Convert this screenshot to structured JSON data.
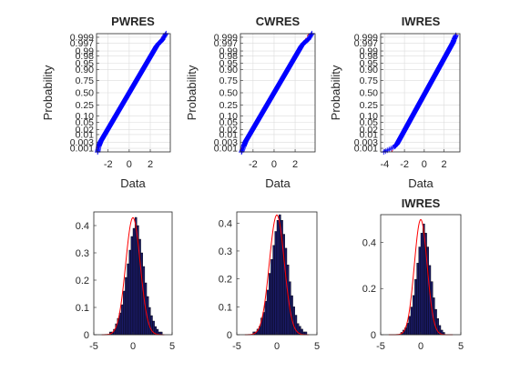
{
  "chart_data": [
    {
      "type": "scatter",
      "subtype": "normal-probability-plot",
      "title": "PWRES",
      "xlabel": "Data",
      "ylabel": "Probability",
      "xlim": [
        -3.1,
        3.9
      ],
      "xticks": [
        -2,
        0,
        2
      ],
      "xtick_labels": [
        "-2",
        "0",
        "2"
      ],
      "yticks": [
        0.001,
        0.003,
        0.01,
        0.02,
        0.05,
        0.1,
        0.25,
        0.5,
        0.75,
        0.9,
        0.95,
        0.98,
        0.99,
        0.997,
        0.999
      ],
      "ytick_labels": [
        "0.001",
        "0.003",
        "0.01",
        "0.02",
        "0.05",
        "0.10",
        "0.25",
        "0.50",
        "0.75",
        "0.90",
        "0.95",
        "0.98",
        "0.99",
        "0.997",
        "0.999"
      ],
      "grid": true,
      "ref_line": {
        "mean": 0,
        "sd": 1
      },
      "points_x": [
        -3.0,
        -2.9,
        -2.8,
        -2.7,
        -2.6,
        -2.5,
        -2.4,
        -2.3,
        -2.2,
        -2.1,
        -2.0,
        -1.9,
        -1.8,
        -1.7,
        -1.6,
        -1.5,
        -1.4,
        -1.3,
        -1.2,
        -1.1,
        -1.0,
        -0.9,
        -0.8,
        -0.7,
        -0.6,
        -0.5,
        -0.4,
        -0.3,
        -0.2,
        -0.1,
        0.0,
        0.1,
        0.2,
        0.3,
        0.4,
        0.5,
        0.6,
        0.7,
        0.8,
        0.9,
        1.0,
        1.1,
        1.2,
        1.3,
        1.4,
        1.5,
        1.6,
        1.7,
        1.8,
        1.9,
        2.0,
        2.1,
        2.2,
        2.3,
        2.4,
        2.5,
        2.6,
        2.8,
        3.0,
        3.2,
        3.5
      ],
      "points_z": [
        -3.3,
        -3.0,
        -2.85,
        -2.7,
        -2.6,
        -2.5,
        -2.4,
        -2.3,
        -2.2,
        -2.1,
        -2.0,
        -1.9,
        -1.8,
        -1.7,
        -1.6,
        -1.5,
        -1.4,
        -1.3,
        -1.2,
        -1.1,
        -1.0,
        -0.9,
        -0.8,
        -0.7,
        -0.6,
        -0.5,
        -0.4,
        -0.3,
        -0.2,
        -0.1,
        0.0,
        0.1,
        0.2,
        0.3,
        0.4,
        0.5,
        0.6,
        0.7,
        0.8,
        0.9,
        1.0,
        1.1,
        1.2,
        1.3,
        1.4,
        1.5,
        1.6,
        1.7,
        1.8,
        1.9,
        2.0,
        2.1,
        2.2,
        2.3,
        2.4,
        2.5,
        2.6,
        2.75,
        2.85,
        3.0,
        3.3
      ]
    },
    {
      "type": "scatter",
      "subtype": "normal-probability-plot",
      "title": "CWRES",
      "xlabel": "Data",
      "ylabel": "Probability",
      "xlim": [
        -3.2,
        3.9
      ],
      "xticks": [
        -2,
        0,
        2
      ],
      "xtick_labels": [
        "-2",
        "0",
        "2"
      ],
      "yticks": [
        0.001,
        0.003,
        0.01,
        0.02,
        0.05,
        0.1,
        0.25,
        0.5,
        0.75,
        0.9,
        0.95,
        0.98,
        0.99,
        0.997,
        0.999
      ],
      "ytick_labels": [
        "0.001",
        "0.003",
        "0.01",
        "0.02",
        "0.05",
        "0.10",
        "0.25",
        "0.50",
        "0.75",
        "0.90",
        "0.95",
        "0.98",
        "0.99",
        "0.997",
        "0.999"
      ],
      "grid": true,
      "ref_line": {
        "mean": 0,
        "sd": 1
      },
      "points_x": [
        -3.1,
        -2.9,
        -2.8,
        -2.7,
        -2.6,
        -2.5,
        -2.4,
        -2.3,
        -2.2,
        -2.1,
        -2.0,
        -1.9,
        -1.8,
        -1.7,
        -1.6,
        -1.5,
        -1.4,
        -1.3,
        -1.2,
        -1.1,
        -1.0,
        -0.9,
        -0.8,
        -0.7,
        -0.6,
        -0.5,
        -0.4,
        -0.3,
        -0.2,
        -0.1,
        0.0,
        0.1,
        0.2,
        0.3,
        0.4,
        0.5,
        0.6,
        0.7,
        0.8,
        0.9,
        1.0,
        1.1,
        1.2,
        1.3,
        1.4,
        1.5,
        1.6,
        1.7,
        1.8,
        1.9,
        2.0,
        2.1,
        2.2,
        2.3,
        2.4,
        2.5,
        2.6,
        2.8,
        3.0,
        3.3,
        3.6
      ],
      "points_z": [
        -3.3,
        -3.0,
        -2.85,
        -2.7,
        -2.6,
        -2.5,
        -2.4,
        -2.3,
        -2.2,
        -2.1,
        -2.0,
        -1.9,
        -1.8,
        -1.7,
        -1.6,
        -1.5,
        -1.4,
        -1.3,
        -1.2,
        -1.1,
        -1.0,
        -0.9,
        -0.8,
        -0.7,
        -0.6,
        -0.5,
        -0.4,
        -0.3,
        -0.2,
        -0.1,
        0.0,
        0.1,
        0.2,
        0.3,
        0.4,
        0.5,
        0.6,
        0.7,
        0.8,
        0.9,
        1.0,
        1.1,
        1.2,
        1.3,
        1.4,
        1.5,
        1.6,
        1.7,
        1.8,
        1.9,
        2.0,
        2.1,
        2.2,
        2.3,
        2.4,
        2.5,
        2.6,
        2.75,
        2.85,
        3.0,
        3.3
      ]
    },
    {
      "type": "scatter",
      "subtype": "normal-probability-plot",
      "title": "IWRES",
      "xlabel": "Data",
      "ylabel": "Probability",
      "xlim": [
        -4.4,
        3.6
      ],
      "xticks": [
        -4,
        -2,
        0,
        2
      ],
      "xtick_labels": [
        "-4",
        "-2",
        "0",
        "2"
      ],
      "yticks": [
        0.001,
        0.003,
        0.01,
        0.02,
        0.05,
        0.1,
        0.25,
        0.5,
        0.75,
        0.9,
        0.95,
        0.98,
        0.99,
        0.997,
        0.999
      ],
      "ytick_labels": [
        "0.001",
        "0.003",
        "0.01",
        "0.02",
        "0.05",
        "0.10",
        "0.25",
        "0.50",
        "0.75",
        "0.90",
        "0.95",
        "0.98",
        "0.99",
        "0.997",
        "0.999"
      ],
      "grid": true,
      "ref_line": {
        "mean": 0,
        "sd": 1
      },
      "points_x": [
        -4.1,
        -3.0,
        -2.75,
        -2.6,
        -2.5,
        -2.4,
        -2.3,
        -2.2,
        -2.1,
        -2.0,
        -1.9,
        -1.8,
        -1.7,
        -1.6,
        -1.5,
        -1.4,
        -1.3,
        -1.2,
        -1.1,
        -1.0,
        -0.9,
        -0.8,
        -0.7,
        -0.6,
        -0.5,
        -0.4,
        -0.3,
        -0.2,
        -0.1,
        0.0,
        0.1,
        0.2,
        0.3,
        0.4,
        0.5,
        0.6,
        0.7,
        0.8,
        0.9,
        1.0,
        1.1,
        1.2,
        1.3,
        1.4,
        1.5,
        1.6,
        1.7,
        1.8,
        1.9,
        2.0,
        2.1,
        2.2,
        2.3,
        2.4,
        2.5,
        2.6,
        2.7,
        2.8,
        2.9,
        3.0,
        3.2
      ],
      "points_z": [
        -3.3,
        -3.0,
        -2.85,
        -2.7,
        -2.6,
        -2.5,
        -2.4,
        -2.3,
        -2.2,
        -2.1,
        -2.0,
        -1.9,
        -1.8,
        -1.7,
        -1.6,
        -1.5,
        -1.4,
        -1.3,
        -1.2,
        -1.1,
        -1.0,
        -0.9,
        -0.8,
        -0.7,
        -0.6,
        -0.5,
        -0.4,
        -0.3,
        -0.2,
        -0.1,
        0.0,
        0.1,
        0.2,
        0.3,
        0.4,
        0.5,
        0.6,
        0.7,
        0.8,
        0.9,
        1.0,
        1.1,
        1.2,
        1.3,
        1.4,
        1.5,
        1.6,
        1.7,
        1.8,
        1.9,
        2.0,
        2.1,
        2.2,
        2.3,
        2.4,
        2.5,
        2.6,
        2.7,
        2.8,
        2.95,
        3.2
      ]
    },
    {
      "type": "bar",
      "subtype": "histogram-with-normal-pdf",
      "title": "",
      "xlim": [
        -5,
        5
      ],
      "ylim": [
        0,
        0.45
      ],
      "xticks": [
        -5,
        0,
        5
      ],
      "xtick_labels": [
        "-5",
        "0",
        "5"
      ],
      "yticks": [
        0,
        0.1,
        0.2,
        0.3,
        0.4
      ],
      "ytick_labels": [
        "0",
        "0.1",
        "0.2",
        "0.3",
        "0.4"
      ],
      "bin_width": 0.25,
      "bins_start": -3.0,
      "values": [
        0.01,
        0.01,
        0.02,
        0.04,
        0.06,
        0.08,
        0.11,
        0.16,
        0.21,
        0.26,
        0.31,
        0.36,
        0.39,
        0.43,
        0.4,
        0.35,
        0.3,
        0.25,
        0.19,
        0.14,
        0.1,
        0.07,
        0.05,
        0.03,
        0.02,
        0.01,
        0.01
      ],
      "pdf": {
        "mean": 0,
        "sd": 0.93
      }
    },
    {
      "type": "bar",
      "subtype": "histogram-with-normal-pdf",
      "title": "",
      "xlim": [
        -5,
        5
      ],
      "ylim": [
        0,
        0.44
      ],
      "xticks": [
        -5,
        0,
        5
      ],
      "xtick_labels": [
        "-5",
        "0",
        "5"
      ],
      "yticks": [
        0,
        0.1,
        0.2,
        0.3,
        0.4
      ],
      "ytick_labels": [
        "0",
        "0.1",
        "0.2",
        "0.3",
        "0.4"
      ],
      "bin_width": 0.25,
      "bins_start": -3.0,
      "values": [
        0.01,
        0.01,
        0.02,
        0.03,
        0.06,
        0.08,
        0.12,
        0.16,
        0.22,
        0.27,
        0.32,
        0.37,
        0.41,
        0.43,
        0.41,
        0.36,
        0.31,
        0.25,
        0.19,
        0.14,
        0.1,
        0.07,
        0.04,
        0.03,
        0.02,
        0.01,
        0.01
      ],
      "pdf": {
        "mean": 0,
        "sd": 0.93
      }
    },
    {
      "type": "bar",
      "subtype": "histogram-with-normal-pdf",
      "title": "IWRES",
      "xlim": [
        -5,
        5
      ],
      "ylim": [
        0,
        0.52
      ],
      "xticks": [
        -5,
        0,
        5
      ],
      "xtick_labels": [
        "-5",
        "0",
        "5"
      ],
      "yticks": [
        0,
        0.2,
        0.4
      ],
      "ytick_labels": [
        "0",
        "0.2",
        "0.4"
      ],
      "bin_width": 0.25,
      "bins_start": -2.5,
      "values": [
        0.01,
        0.02,
        0.03,
        0.05,
        0.08,
        0.12,
        0.17,
        0.24,
        0.31,
        0.38,
        0.44,
        0.48,
        0.44,
        0.38,
        0.3,
        0.23,
        0.16,
        0.11,
        0.07,
        0.04,
        0.02,
        0.01
      ],
      "pdf": {
        "mean": 0,
        "sd": 0.8
      }
    }
  ],
  "colors": {
    "marker": "#0000ff",
    "ref_line": "#ff0000",
    "bar_fill": "#1a1a66",
    "bar_edge": "#000000",
    "grid": "#dcdcdc",
    "axes": "#262626"
  }
}
